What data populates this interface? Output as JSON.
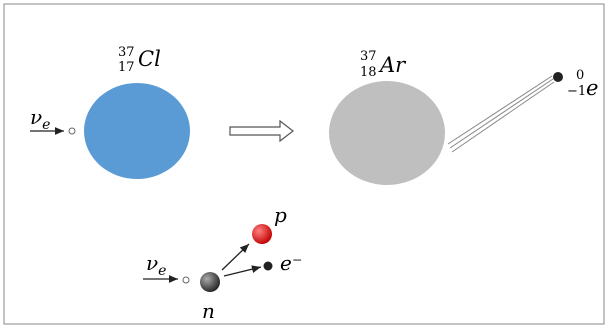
{
  "reaction": {
    "neutrino": {
      "symbol": "ν",
      "sub": "e"
    },
    "chlorine": {
      "mass": "37",
      "atomic": "17",
      "symbol": "Cl"
    },
    "argon": {
      "mass": "37",
      "atomic": "18",
      "symbol": "Ar"
    },
    "electron": {
      "mass": "0",
      "atomic": "−1",
      "symbol": "e"
    }
  },
  "decay": {
    "neutrino": {
      "symbol": "ν",
      "sub": "e"
    },
    "proton": "p",
    "electron": "e⁻",
    "neutron": "n"
  }
}
